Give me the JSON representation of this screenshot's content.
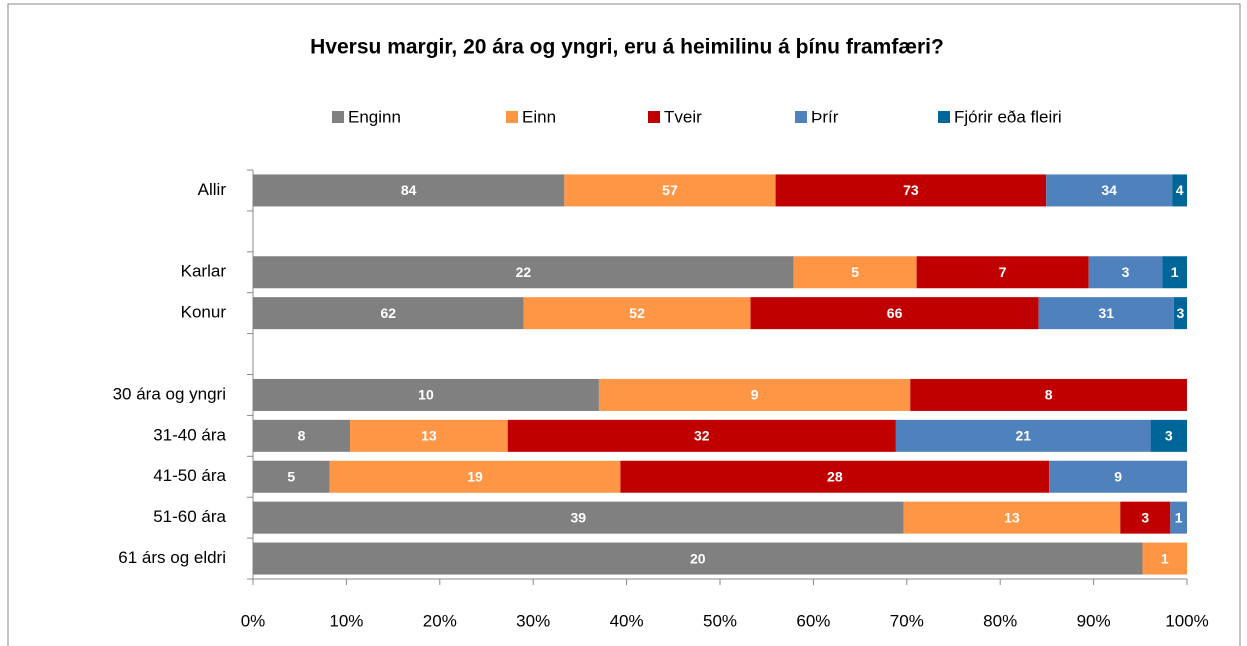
{
  "chart_data": {
    "type": "bar",
    "orientation": "horizontal",
    "stacking": "percent",
    "title": "Hversu margir, 20 ára og yngri, eru á heimilinu á þínu framfæri?",
    "categories": [
      "Allir",
      null,
      "Karlar",
      "Konur",
      null,
      "30 ára og yngri",
      "31-40 ára",
      "41-50 ára",
      "51-60 ára",
      "61 árs og eldri"
    ],
    "series": [
      {
        "name": "Enginn",
        "color": "#808080",
        "values": [
          84,
          null,
          22,
          62,
          null,
          10,
          8,
          5,
          39,
          20
        ]
      },
      {
        "name": "Einn",
        "color": "#ff9646",
        "values": [
          57,
          null,
          5,
          52,
          null,
          9,
          13,
          19,
          13,
          1
        ]
      },
      {
        "name": "Tveir",
        "color": "#c00000",
        "values": [
          73,
          null,
          7,
          66,
          null,
          8,
          32,
          28,
          3,
          null
        ]
      },
      {
        "name": "Þrír",
        "color": "#4f81bd",
        "values": [
          34,
          null,
          3,
          31,
          null,
          null,
          21,
          9,
          1,
          null
        ]
      },
      {
        "name": "Fjórir eða fleiri",
        "color": "#006699",
        "values": [
          4,
          null,
          1,
          3,
          null,
          null,
          3,
          null,
          null,
          null
        ]
      }
    ],
    "xlim": [
      0,
      100
    ],
    "xticks": [
      {
        "value": 0,
        "label": "0%"
      },
      {
        "value": 10,
        "label": "10%"
      },
      {
        "value": 20,
        "label": "20%"
      },
      {
        "value": 30,
        "label": "30%"
      },
      {
        "value": 40,
        "label": "40%"
      },
      {
        "value": 50,
        "label": "50%"
      },
      {
        "value": 60,
        "label": "60%"
      },
      {
        "value": 70,
        "label": "70%"
      },
      {
        "value": 80,
        "label": "80%"
      },
      {
        "value": 90,
        "label": "90%"
      },
      {
        "value": 100,
        "label": "100%"
      }
    ],
    "legend": "top"
  }
}
